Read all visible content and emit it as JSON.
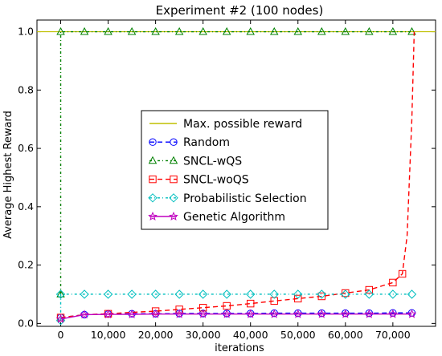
{
  "chart_data": {
    "type": "line",
    "title": "Experiment #2 (100 nodes)",
    "xlabel": "iterations",
    "ylabel": "Average Highest Reward",
    "xlim": [
      -5000,
      79000
    ],
    "ylim": [
      -0.01,
      1.04
    ],
    "xticks": [
      0,
      10000,
      20000,
      30000,
      40000,
      50000,
      60000,
      70000
    ],
    "xtick_labels": [
      "0",
      "10,000",
      "20,000",
      "30,000",
      "40,000",
      "50,000",
      "60,000",
      "70,000"
    ],
    "yticks": [
      0.0,
      0.2,
      0.4,
      0.6,
      0.8,
      1.0
    ],
    "ytick_labels": [
      "0.0",
      "0.2",
      "0.4",
      "0.6",
      "0.8",
      "1.0"
    ],
    "grid": false,
    "legend_position": "center",
    "series": [
      {
        "name": "Max. possible reward",
        "style": "solid",
        "marker": "none",
        "color": "#bfbf00",
        "x": [
          -5000,
          79000
        ],
        "y": [
          1.0,
          1.0
        ]
      },
      {
        "name": "Random",
        "style": "dashed",
        "marker": "circle",
        "color": "#0000ff",
        "x": [
          0,
          5000,
          10000,
          15000,
          20000,
          25000,
          30000,
          35000,
          40000,
          45000,
          50000,
          55000,
          60000,
          65000,
          70000,
          74000
        ],
        "y": [
          0.02,
          0.03,
          0.032,
          0.033,
          0.033,
          0.034,
          0.034,
          0.034,
          0.034,
          0.035,
          0.035,
          0.035,
          0.035,
          0.035,
          0.036,
          0.036
        ]
      },
      {
        "name": "SNCL-wQS",
        "style": "dashdot",
        "marker": "triangle",
        "color": "#008000",
        "x": [
          0,
          0,
          5000,
          10000,
          15000,
          20000,
          25000,
          30000,
          35000,
          40000,
          45000,
          50000,
          55000,
          60000,
          65000,
          70000,
          74000
        ],
        "y": [
          0.1,
          1.0,
          1.0,
          1.0,
          1.0,
          1.0,
          1.0,
          1.0,
          1.0,
          1.0,
          1.0,
          1.0,
          1.0,
          1.0,
          1.0,
          1.0,
          1.0
        ]
      },
      {
        "name": "SNCL-woQS",
        "style": "dashed",
        "marker": "square",
        "color": "#ff0000",
        "x": [
          0,
          5000,
          10000,
          15000,
          20000,
          25000,
          30000,
          35000,
          40000,
          45000,
          50000,
          55000,
          60000,
          65000,
          70000,
          72000,
          73000,
          74000,
          74500
        ],
        "y": [
          0.02,
          0.03,
          0.033,
          0.038,
          0.042,
          0.048,
          0.054,
          0.06,
          0.068,
          0.077,
          0.085,
          0.093,
          0.104,
          0.115,
          0.14,
          0.17,
          0.3,
          0.7,
          1.0
        ],
        "marker_indices": [
          0,
          2,
          4,
          5,
          6,
          7,
          8,
          9,
          10,
          11,
          12,
          13,
          14,
          15
        ]
      },
      {
        "name": "Probabilistic Selection",
        "style": "dashdot",
        "marker": "diamond",
        "color": "#00bfbf",
        "x": [
          0,
          0,
          5000,
          10000,
          15000,
          20000,
          25000,
          30000,
          35000,
          40000,
          45000,
          50000,
          55000,
          60000,
          65000,
          70000,
          74000
        ],
        "y": [
          0.01,
          0.1,
          0.1,
          0.1,
          0.1,
          0.1,
          0.1,
          0.1,
          0.1,
          0.1,
          0.1,
          0.1,
          0.1,
          0.1,
          0.1,
          0.1,
          0.1
        ]
      },
      {
        "name": "Genetic Algorithm",
        "style": "solid",
        "marker": "star",
        "color": "#bf00bf",
        "x": [
          0,
          5000,
          10000,
          15000,
          20000,
          25000,
          30000,
          35000,
          40000,
          45000,
          50000,
          55000,
          60000,
          65000,
          70000,
          74000
        ],
        "y": [
          0.015,
          0.03,
          0.031,
          0.031,
          0.032,
          0.032,
          0.032,
          0.032,
          0.032,
          0.032,
          0.032,
          0.032,
          0.032,
          0.032,
          0.032,
          0.032
        ]
      }
    ]
  }
}
